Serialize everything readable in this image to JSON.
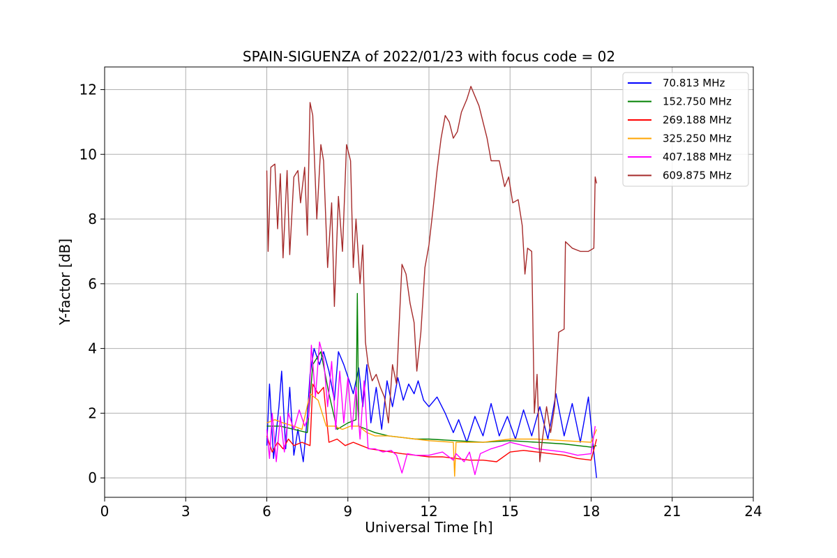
{
  "chart_data": {
    "type": "line",
    "title": "SPAIN-SIGUENZA of 2022/01/23 with focus code = 02",
    "xlabel": "Universal Time [h]",
    "ylabel": "Y-factor [dB]",
    "xlim": [
      0,
      24
    ],
    "ylim": [
      -0.6,
      12.7
    ],
    "xticks": [
      0,
      3,
      6,
      9,
      12,
      15,
      18,
      21,
      24
    ],
    "yticks": [
      0,
      2,
      4,
      6,
      8,
      10,
      12
    ],
    "grid": true,
    "legend_position": "top-right",
    "series": [
      {
        "name": " 70.813 MHz",
        "color": "#0000ff",
        "points": [
          [
            6.0,
            1.0
          ],
          [
            6.1,
            2.9
          ],
          [
            6.25,
            0.6
          ],
          [
            6.45,
            2.2
          ],
          [
            6.55,
            3.3
          ],
          [
            6.7,
            0.9
          ],
          [
            6.85,
            2.8
          ],
          [
            7.0,
            0.7
          ],
          [
            7.15,
            1.5
          ],
          [
            7.35,
            0.5
          ],
          [
            7.5,
            1.9
          ],
          [
            7.6,
            3.2
          ],
          [
            7.75,
            4.0
          ],
          [
            7.95,
            3.5
          ],
          [
            8.1,
            3.9
          ],
          [
            8.3,
            3.3
          ],
          [
            8.5,
            2.4
          ],
          [
            8.65,
            3.9
          ],
          [
            8.85,
            3.5
          ],
          [
            9.05,
            3.0
          ],
          [
            9.2,
            2.6
          ],
          [
            9.4,
            3.4
          ],
          [
            9.55,
            2.2
          ],
          [
            9.7,
            3.5
          ],
          [
            9.85,
            1.7
          ],
          [
            10.05,
            2.8
          ],
          [
            10.25,
            1.5
          ],
          [
            10.45,
            3.0
          ],
          [
            10.65,
            2.2
          ],
          [
            10.85,
            3.1
          ],
          [
            11.05,
            2.4
          ],
          [
            11.25,
            2.9
          ],
          [
            11.45,
            2.6
          ],
          [
            11.6,
            3.0
          ],
          [
            11.8,
            2.4
          ],
          [
            12.0,
            2.2
          ],
          [
            12.3,
            2.5
          ],
          [
            12.6,
            2.0
          ],
          [
            12.9,
            1.4
          ],
          [
            13.1,
            1.8
          ],
          [
            13.4,
            1.1
          ],
          [
            13.7,
            1.9
          ],
          [
            14.0,
            1.3
          ],
          [
            14.3,
            2.3
          ],
          [
            14.6,
            1.3
          ],
          [
            14.9,
            1.9
          ],
          [
            15.2,
            1.2
          ],
          [
            15.5,
            2.1
          ],
          [
            15.8,
            1.3
          ],
          [
            16.1,
            2.2
          ],
          [
            16.4,
            1.2
          ],
          [
            16.7,
            2.6
          ],
          [
            17.0,
            1.3
          ],
          [
            17.3,
            2.3
          ],
          [
            17.6,
            1.1
          ],
          [
            17.9,
            2.5
          ],
          [
            18.05,
            1.2
          ],
          [
            18.15,
            0.4
          ],
          [
            18.2,
            0.0
          ]
        ]
      },
      {
        "name": "152.750 MHz",
        "color": "#008000",
        "points": [
          [
            6.0,
            1.6
          ],
          [
            6.5,
            1.6
          ],
          [
            7.0,
            1.5
          ],
          [
            7.5,
            1.4
          ],
          [
            7.7,
            3.5
          ],
          [
            8.0,
            3.9
          ],
          [
            8.3,
            2.6
          ],
          [
            8.6,
            1.5
          ],
          [
            9.0,
            1.7
          ],
          [
            9.3,
            1.8
          ],
          [
            9.35,
            5.7
          ],
          [
            9.4,
            1.6
          ],
          [
            9.7,
            1.5
          ],
          [
            10.0,
            1.4
          ],
          [
            10.5,
            1.3
          ],
          [
            11.0,
            1.25
          ],
          [
            11.5,
            1.2
          ],
          [
            12.0,
            1.2
          ],
          [
            13.0,
            1.15
          ],
          [
            14.0,
            1.1
          ],
          [
            15.0,
            1.15
          ],
          [
            16.0,
            1.1
          ],
          [
            17.0,
            1.05
          ],
          [
            18.0,
            0.95
          ],
          [
            18.2,
            1.0
          ]
        ]
      },
      {
        "name": "269.188 MHz",
        "color": "#ff0000",
        "points": [
          [
            6.0,
            1.3
          ],
          [
            6.2,
            0.8
          ],
          [
            6.4,
            1.1
          ],
          [
            6.6,
            0.9
          ],
          [
            6.8,
            1.2
          ],
          [
            7.0,
            1.0
          ],
          [
            7.3,
            1.1
          ],
          [
            7.6,
            1.0
          ],
          [
            7.7,
            2.9
          ],
          [
            7.9,
            2.6
          ],
          [
            8.1,
            2.8
          ],
          [
            8.3,
            1.1
          ],
          [
            8.6,
            1.2
          ],
          [
            8.9,
            1.0
          ],
          [
            9.2,
            1.1
          ],
          [
            9.5,
            1.0
          ],
          [
            9.8,
            0.9
          ],
          [
            10.2,
            0.85
          ],
          [
            10.6,
            0.8
          ],
          [
            11.0,
            0.75
          ],
          [
            11.5,
            0.7
          ],
          [
            12.0,
            0.65
          ],
          [
            12.5,
            0.65
          ],
          [
            13.0,
            0.6
          ],
          [
            13.5,
            0.55
          ],
          [
            14.0,
            0.55
          ],
          [
            14.5,
            0.5
          ],
          [
            15.0,
            0.8
          ],
          [
            15.5,
            0.85
          ],
          [
            16.0,
            0.8
          ],
          [
            16.5,
            0.75
          ],
          [
            17.0,
            0.7
          ],
          [
            17.5,
            0.6
          ],
          [
            18.0,
            0.55
          ],
          [
            18.2,
            1.2
          ]
        ]
      },
      {
        "name": "325.250 MHz",
        "color": "#ffa500",
        "points": [
          [
            6.0,
            1.7
          ],
          [
            6.3,
            1.8
          ],
          [
            6.6,
            1.7
          ],
          [
            7.0,
            1.6
          ],
          [
            7.3,
            1.5
          ],
          [
            7.6,
            2.6
          ],
          [
            7.9,
            2.4
          ],
          [
            8.2,
            1.6
          ],
          [
            8.5,
            1.6
          ],
          [
            8.8,
            1.5
          ],
          [
            9.1,
            1.6
          ],
          [
            9.4,
            1.6
          ],
          [
            9.7,
            1.4
          ],
          [
            10.0,
            1.3
          ],
          [
            10.5,
            1.3
          ],
          [
            11.0,
            1.25
          ],
          [
            11.5,
            1.2
          ],
          [
            12.0,
            1.15
          ],
          [
            12.9,
            1.1
          ],
          [
            12.95,
            0.05
          ],
          [
            13.0,
            1.1
          ],
          [
            14.0,
            1.1
          ],
          [
            15.0,
            1.2
          ],
          [
            16.0,
            1.2
          ],
          [
            17.0,
            1.15
          ],
          [
            18.0,
            1.1
          ],
          [
            18.2,
            1.5
          ]
        ]
      },
      {
        "name": "407.188 MHz",
        "color": "#ff00ff",
        "points": [
          [
            6.0,
            1.5
          ],
          [
            6.1,
            0.6
          ],
          [
            6.2,
            2.0
          ],
          [
            6.35,
            0.5
          ],
          [
            6.5,
            1.9
          ],
          [
            6.65,
            0.8
          ],
          [
            6.8,
            2.0
          ],
          [
            7.0,
            1.5
          ],
          [
            7.2,
            2.1
          ],
          [
            7.4,
            1.6
          ],
          [
            7.55,
            1.9
          ],
          [
            7.65,
            4.1
          ],
          [
            7.8,
            2.5
          ],
          [
            7.95,
            4.2
          ],
          [
            8.1,
            3.7
          ],
          [
            8.25,
            2.2
          ],
          [
            8.4,
            3.6
          ],
          [
            8.55,
            1.5
          ],
          [
            8.7,
            3.3
          ],
          [
            8.85,
            1.7
          ],
          [
            9.0,
            3.1
          ],
          [
            9.15,
            1.5
          ],
          [
            9.3,
            2.8
          ],
          [
            9.45,
            1.2
          ],
          [
            9.6,
            3.0
          ],
          [
            9.75,
            0.9
          ],
          [
            10.0,
            0.9
          ],
          [
            10.3,
            0.8
          ],
          [
            10.6,
            0.85
          ],
          [
            10.8,
            0.7
          ],
          [
            11.0,
            0.15
          ],
          [
            11.2,
            0.75
          ],
          [
            11.5,
            0.7
          ],
          [
            12.0,
            0.7
          ],
          [
            12.5,
            0.8
          ],
          [
            12.9,
            0.55
          ],
          [
            13.0,
            0.75
          ],
          [
            13.3,
            0.5
          ],
          [
            13.5,
            0.8
          ],
          [
            13.7,
            0.1
          ],
          [
            13.9,
            0.75
          ],
          [
            14.3,
            0.9
          ],
          [
            14.7,
            1.0
          ],
          [
            15.0,
            1.1
          ],
          [
            15.5,
            1.0
          ],
          [
            16.0,
            0.9
          ],
          [
            16.5,
            0.85
          ],
          [
            17.0,
            0.8
          ],
          [
            17.5,
            0.7
          ],
          [
            18.0,
            0.75
          ],
          [
            18.15,
            1.6
          ]
        ]
      },
      {
        "name": "609.875 MHz",
        "color": "#a52a2a",
        "points": [
          [
            6.0,
            9.5
          ],
          [
            6.05,
            7.0
          ],
          [
            6.15,
            9.6
          ],
          [
            6.3,
            9.7
          ],
          [
            6.4,
            7.7
          ],
          [
            6.5,
            9.4
          ],
          [
            6.6,
            6.8
          ],
          [
            6.75,
            9.5
          ],
          [
            6.85,
            6.9
          ],
          [
            7.0,
            9.3
          ],
          [
            7.15,
            9.5
          ],
          [
            7.25,
            8.5
          ],
          [
            7.4,
            9.6
          ],
          [
            7.5,
            7.5
          ],
          [
            7.6,
            11.6
          ],
          [
            7.7,
            11.2
          ],
          [
            7.85,
            8.0
          ],
          [
            8.0,
            10.3
          ],
          [
            8.1,
            9.8
          ],
          [
            8.25,
            6.5
          ],
          [
            8.4,
            8.5
          ],
          [
            8.5,
            5.3
          ],
          [
            8.65,
            8.7
          ],
          [
            8.8,
            7.0
          ],
          [
            8.95,
            10.3
          ],
          [
            9.1,
            9.8
          ],
          [
            9.2,
            6.5
          ],
          [
            9.3,
            8.0
          ],
          [
            9.45,
            6.0
          ],
          [
            9.55,
            7.2
          ],
          [
            9.65,
            4.2
          ],
          [
            9.75,
            3.5
          ],
          [
            9.9,
            3.0
          ],
          [
            10.05,
            3.2
          ],
          [
            10.2,
            2.8
          ],
          [
            10.35,
            2.5
          ],
          [
            10.5,
            1.7
          ],
          [
            10.65,
            3.5
          ],
          [
            10.8,
            2.9
          ],
          [
            10.9,
            4.8
          ],
          [
            11.0,
            6.6
          ],
          [
            11.15,
            6.3
          ],
          [
            11.3,
            5.4
          ],
          [
            11.45,
            4.8
          ],
          [
            11.55,
            3.3
          ],
          [
            11.7,
            4.5
          ],
          [
            11.85,
            6.5
          ],
          [
            12.0,
            7.2
          ],
          [
            12.15,
            8.3
          ],
          [
            12.3,
            9.5
          ],
          [
            12.45,
            10.5
          ],
          [
            12.6,
            11.2
          ],
          [
            12.75,
            11.0
          ],
          [
            12.9,
            10.5
          ],
          [
            13.05,
            10.7
          ],
          [
            13.2,
            11.3
          ],
          [
            13.4,
            11.7
          ],
          [
            13.55,
            12.1
          ],
          [
            13.7,
            11.8
          ],
          [
            13.85,
            11.5
          ],
          [
            14.0,
            11.0
          ],
          [
            14.15,
            10.5
          ],
          [
            14.3,
            9.8
          ],
          [
            14.6,
            9.8
          ],
          [
            14.8,
            9.0
          ],
          [
            14.95,
            9.3
          ],
          [
            15.1,
            8.5
          ],
          [
            15.3,
            8.6
          ],
          [
            15.45,
            7.8
          ],
          [
            15.55,
            6.3
          ],
          [
            15.65,
            7.1
          ],
          [
            15.8,
            7.0
          ],
          [
            15.9,
            2.0
          ],
          [
            16.0,
            3.2
          ],
          [
            16.1,
            0.5
          ],
          [
            16.2,
            1.2
          ],
          [
            16.35,
            2.2
          ],
          [
            16.5,
            1.4
          ],
          [
            16.65,
            2.2
          ],
          [
            16.8,
            4.5
          ],
          [
            17.0,
            4.6
          ],
          [
            17.05,
            7.3
          ],
          [
            17.3,
            7.1
          ],
          [
            17.6,
            7.0
          ],
          [
            17.9,
            7.0
          ],
          [
            18.1,
            7.1
          ],
          [
            18.15,
            9.3
          ],
          [
            18.2,
            9.1
          ]
        ]
      }
    ]
  }
}
